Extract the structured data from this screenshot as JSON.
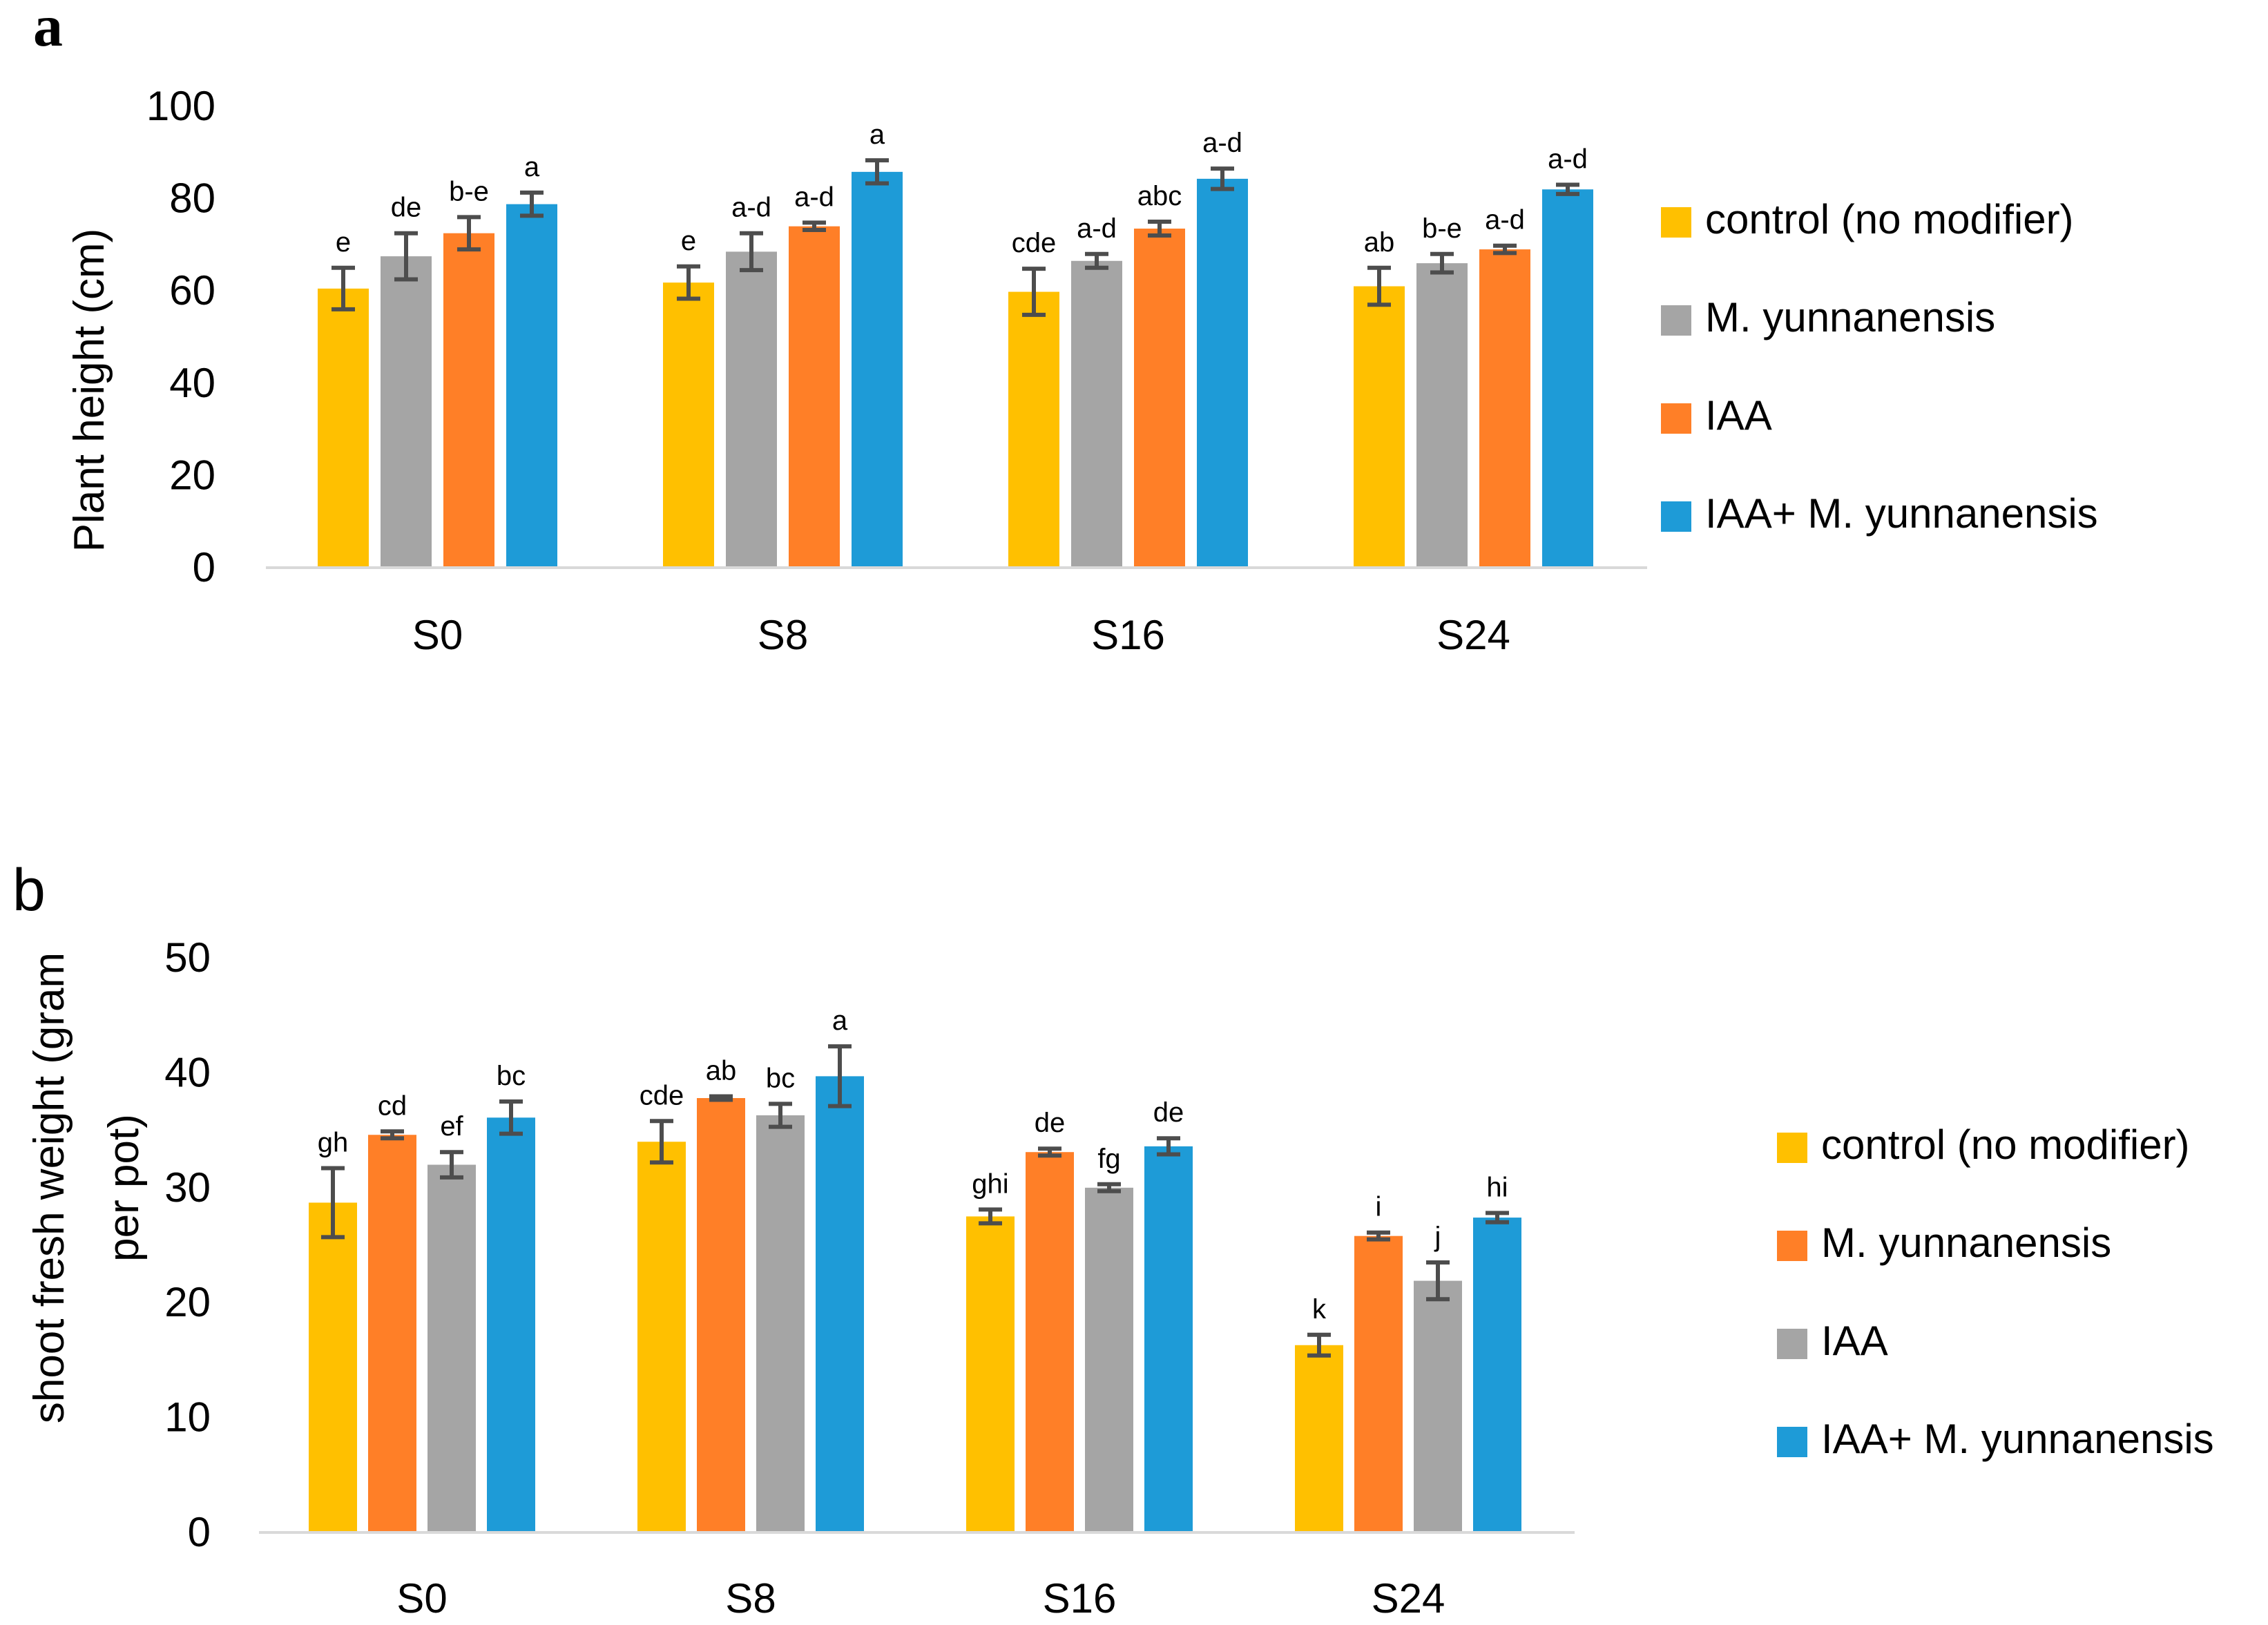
{
  "chart_data": [
    {
      "panel_label": "a",
      "type": "bar",
      "ylabel": "Plant height (cm)",
      "xlabel": "",
      "ylim": [
        0,
        100
      ],
      "yticks": [
        0,
        20,
        40,
        60,
        80,
        100
      ],
      "categories": [
        "S0",
        "S8",
        "S16",
        "S24"
      ],
      "series": [
        {
          "name": "control (no modifier)",
          "color": "#FFC000",
          "values": [
            60.5,
            61.8,
            59.8,
            61
          ],
          "errors": [
            4.5,
            3.5,
            5,
            4
          ],
          "letters": [
            "e",
            "e",
            "cde",
            "ab"
          ]
        },
        {
          "name": "M. yunnanensis",
          "color": "#A5A5A5",
          "values": [
            67.5,
            68.5,
            66.5,
            66
          ],
          "errors": [
            5,
            4,
            1.5,
            2
          ],
          "letters": [
            "de",
            "a-d",
            "a-d",
            "b-e"
          ]
        },
        {
          "name": "IAA",
          "color": "#FF7F27",
          "values": [
            72.5,
            74,
            73.5,
            69
          ],
          "errors": [
            3.5,
            0.8,
            1.5,
            0.8
          ],
          "letters": [
            "b-e",
            "a-d",
            "abc",
            "a-d"
          ]
        },
        {
          "name": "IAA+ M. yunnanensis",
          "color": "#1E9BD7",
          "values": [
            78.8,
            85.8,
            84.3,
            82
          ],
          "errors": [
            2.5,
            2.5,
            2.2,
            1
          ],
          "letters": [
            "a",
            "a",
            "a-d",
            "a-d"
          ]
        }
      ]
    },
    {
      "panel_label": "b",
      "type": "bar",
      "ylabel": "shoot fresh weight (gram per pot)",
      "ylabel_lines": [
        "shoot fresh weight (gram",
        "per pot)"
      ],
      "xlabel": "",
      "ylim": [
        0,
        50
      ],
      "yticks": [
        0,
        10,
        20,
        30,
        40,
        50
      ],
      "categories": [
        "S0",
        "S8",
        "S16",
        "S24"
      ],
      "series": [
        {
          "name": "control (no modifier)",
          "color": "#FFC000",
          "values": [
            28.7,
            34,
            27.5,
            16.3
          ],
          "errors": [
            3,
            1.8,
            0.6,
            0.9
          ],
          "letters": [
            "gh",
            "cde",
            "ghi",
            "k"
          ]
        },
        {
          "name": "M. yunnanensis",
          "color": "#FF7F27",
          "values": [
            34.6,
            37.8,
            33.1,
            25.8
          ],
          "errors": [
            0.3,
            0.15,
            0.3,
            0.3
          ],
          "letters": [
            "cd",
            "ab",
            "de",
            "i"
          ]
        },
        {
          "name": "IAA",
          "color": "#A5A5A5",
          "values": [
            32,
            36.3,
            30,
            21.9
          ],
          "errors": [
            1.1,
            1,
            0.3,
            1.6
          ],
          "letters": [
            "ef",
            "bc",
            "fg",
            "j"
          ]
        },
        {
          "name": "IAA+ M. yunnanensis",
          "color": "#1E9BD7",
          "values": [
            36.1,
            39.7,
            33.6,
            27.4
          ],
          "errors": [
            1.4,
            2.6,
            0.7,
            0.4
          ],
          "letters": [
            "bc",
            "a",
            "de",
            "hi"
          ]
        }
      ]
    }
  ]
}
